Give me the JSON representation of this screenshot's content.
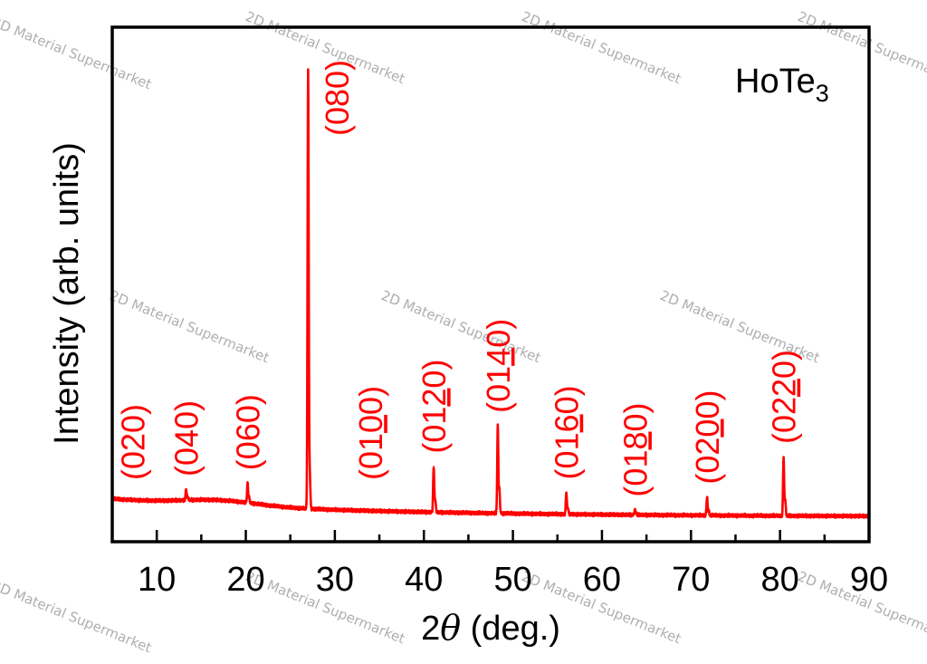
{
  "chart_data": {
    "type": "line",
    "compound": {
      "base": "HoTe",
      "subscript": "3"
    },
    "xlabel": {
      "prefix": "2",
      "symbol": "θ",
      "suffix": " (deg.)"
    },
    "ylabel": "Intensity (arb. units)",
    "xlim": [
      5,
      90
    ],
    "ylim": [
      0,
      100
    ],
    "xticks": [
      10,
      20,
      30,
      40,
      50,
      60,
      70,
      80,
      90
    ],
    "series_color": "#ff0000",
    "background": {
      "start": 4.4,
      "end": 0.3
    },
    "peaks": [
      {
        "x": 13.3,
        "height": 2.5,
        "label": {
          "pre": "(0",
          "under": "",
          "post": "40)"
        }
      },
      {
        "x": 20.2,
        "height": 4.5,
        "label": {
          "pre": "(0",
          "under": "",
          "post": "60)"
        }
      },
      {
        "x": 27.0,
        "height": 100,
        "label": {
          "pre": "(0",
          "under": "",
          "post": "80)"
        }
      },
      {
        "x": 41.1,
        "height": 10.5,
        "label": {
          "pre": "(01",
          "under": "2",
          "post": "0)"
        }
      },
      {
        "x": 48.3,
        "height": 20,
        "label": {
          "pre": "(01",
          "under": "4",
          "post": "0)"
        }
      },
      {
        "x": 56.0,
        "height": 5,
        "label": {
          "pre": "(01",
          "under": "6",
          "post": "0)"
        }
      },
      {
        "x": 63.7,
        "height": 1.2,
        "label": {
          "pre": "(01",
          "under": "8",
          "post": "0)"
        }
      },
      {
        "x": 71.8,
        "height": 4.2,
        "label": {
          "pre": "(02",
          "under": "0",
          "post": "0)"
        }
      },
      {
        "x": 80.4,
        "height": 13.5,
        "label": {
          "pre": "(02",
          "under": "2",
          "post": "0)"
        }
      }
    ],
    "extra_labels": [
      {
        "x": 7.3,
        "label": {
          "pre": "(020)",
          "under": "",
          "post": ""
        }
      },
      {
        "x": 34.0,
        "label": {
          "pre": "(01",
          "under": "0",
          "post": "0)"
        }
      }
    ]
  },
  "watermark": "2D Material Supermarket"
}
